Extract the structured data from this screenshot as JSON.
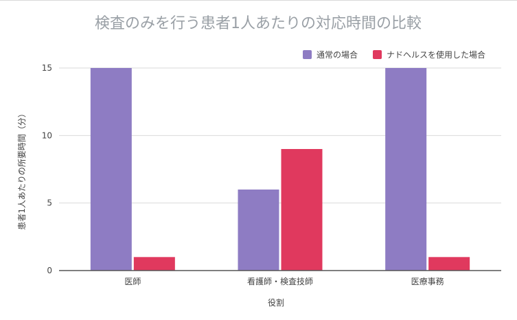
{
  "chart_data": {
    "type": "bar",
    "title": "検査のみを行う患者1人あたりの対応時間の比較",
    "xlabel": "役割",
    "ylabel": "患者1人あたりの所要時間（分）",
    "categories": [
      "医師",
      "看護師・検査技師",
      "医療事務"
    ],
    "series": [
      {
        "name": "通常の場合",
        "values": [
          15,
          6,
          15
        ],
        "color": "#8e7cc3"
      },
      {
        "name": "ナドヘルスを使用した場合",
        "values": [
          1,
          9,
          1
        ],
        "color": "#e0395e"
      }
    ],
    "ylim": [
      0,
      15
    ],
    "yticks": [
      "0",
      "5",
      "10",
      "15"
    ],
    "grid": true,
    "legend_position": "top-right"
  }
}
